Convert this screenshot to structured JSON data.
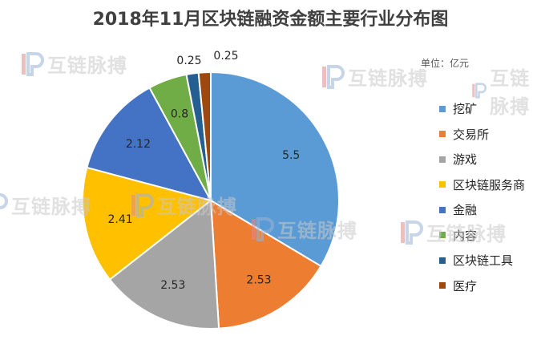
{
  "chart_data": {
    "type": "pie",
    "title": "2018年11月区块链融资金额主要行业分布图",
    "unit": "单位：亿元",
    "start_angle_deg": 0,
    "direction": "clockwise",
    "legend_position": "right",
    "slices": [
      {
        "label": "挖矿",
        "value": 5.5,
        "color": "#5B9BD5"
      },
      {
        "label": "交易所",
        "value": 2.53,
        "color": "#ED7D31"
      },
      {
        "label": "游戏",
        "value": 2.53,
        "color": "#A5A5A5"
      },
      {
        "label": "区块链服务商",
        "value": 2.41,
        "color": "#FFC000"
      },
      {
        "label": "金融",
        "value": 2.12,
        "color": "#4472C4"
      },
      {
        "label": "内容",
        "value": 0.8,
        "color": "#70AD47"
      },
      {
        "label": "区块链工具",
        "value": 0.25,
        "color": "#255E91"
      },
      {
        "label": "医疗",
        "value": 0.25,
        "color": "#9E480E"
      }
    ]
  },
  "watermark": {
    "text": "互链脉搏",
    "icon": "interchain-pulse-logo-icon"
  }
}
